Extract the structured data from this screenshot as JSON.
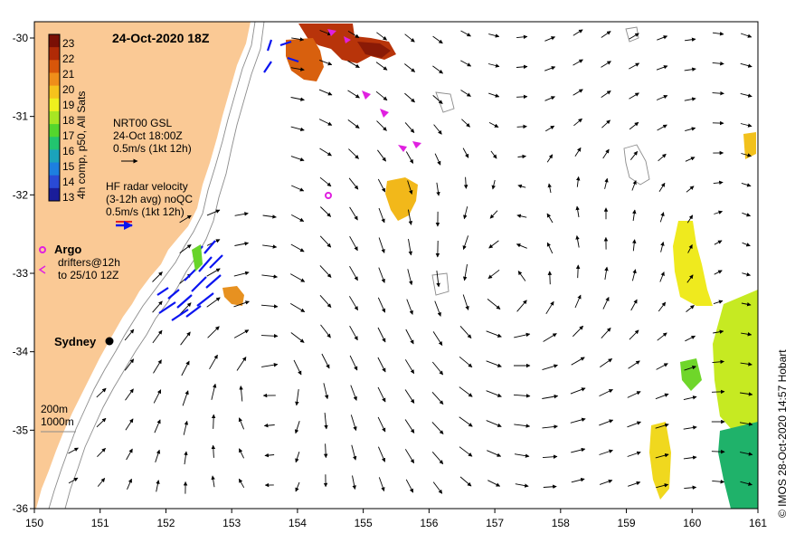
{
  "title": "24-Oct-2020 18Z",
  "credit": "© IMOS 28-Oct-2020 14:57 Hobart",
  "colorbar": {
    "label": "4h comp, p50, All Sats",
    "ticks": [
      "23",
      "22",
      "21",
      "20",
      "19",
      "18",
      "17",
      "16",
      "15",
      "14",
      "13"
    ],
    "colors": [
      "#7a0f05",
      "#b02a06",
      "#d8560a",
      "#ef8e1a",
      "#f6c31c",
      "#eff01e",
      "#a7e623",
      "#54d62d",
      "#22c46f",
      "#1ba3bb",
      "#1d7fe0",
      "#2a4ad6",
      "#1a1d9a"
    ]
  },
  "legend": {
    "gsl_line1": "NRT00 GSL",
    "gsl_line2": "24-Oct 18:00Z",
    "gsl_line3": "0.5m/s (1kt 12h)",
    "hf_line1": "HF radar velocity",
    "hf_line2": "(3-12h avg) noQC",
    "hf_line3": "0.5m/s (1kt 12h)",
    "argo_label": "Argo",
    "drifter_line1": "drifters@12h",
    "drifter_line2": "to 25/10 12Z",
    "depth_200": "200m",
    "depth_1000": "1000m"
  },
  "place_label": "Sydney",
  "axes": {
    "x_ticks": [
      "150",
      "151",
      "152",
      "153",
      "154",
      "155",
      "156",
      "157",
      "158",
      "159",
      "160",
      "161"
    ],
    "y_ticks": [
      "-30",
      "-31",
      "-32",
      "-33",
      "-34",
      "-35",
      "-36"
    ]
  },
  "colors": {
    "land": "#fac995",
    "arrow": "#000000",
    "hf_radar": "#0a14f0",
    "argo": "#e020e0",
    "isobath": "#8c8c8c"
  }
}
